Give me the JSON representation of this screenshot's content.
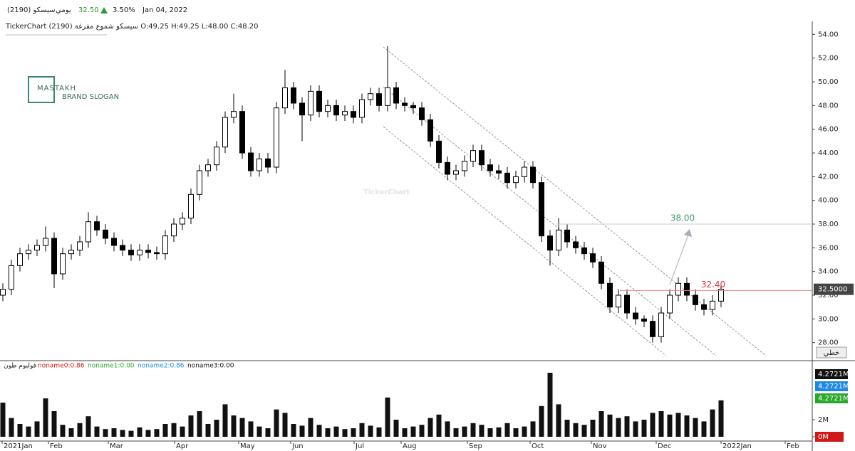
{
  "header": {
    "name": "سيسكو (2190)",
    "period": "يومي",
    "price": "32.50",
    "change": "3.50%",
    "date": "Jan 04, 2022"
  },
  "subheader": "TickerChart سيسكو شموع مفرغة (2190) O:49.25 H:49.25 L:48.00 C:48.20",
  "logo": {
    "title": "MASTAKH",
    "subtitle": "BRAND SLOGAN"
  },
  "watermark": "TickerChart",
  "style_label": "خطي",
  "chart_data": {
    "type": "candlestick",
    "candles": [
      [
        32.0,
        33.0,
        31.5,
        32.5
      ],
      [
        32.5,
        35.0,
        32.0,
        34.5
      ],
      [
        34.5,
        36.0,
        34.0,
        35.5
      ],
      [
        35.5,
        36.3,
        35.0,
        35.8
      ],
      [
        35.8,
        36.7,
        35.3,
        36.2
      ],
      [
        36.2,
        37.8,
        35.7,
        36.8
      ],
      [
        36.8,
        37.3,
        32.6,
        33.8
      ],
      [
        33.8,
        36.0,
        33.3,
        35.5
      ],
      [
        35.5,
        36.3,
        35.0,
        35.8
      ],
      [
        35.8,
        37.0,
        35.3,
        36.5
      ],
      [
        36.5,
        39.0,
        36.0,
        38.2
      ],
      [
        38.2,
        38.7,
        37.0,
        37.5
      ],
      [
        37.5,
        38.0,
        36.3,
        36.8
      ],
      [
        36.8,
        37.3,
        35.7,
        36.2
      ],
      [
        36.2,
        36.7,
        35.3,
        35.8
      ],
      [
        35.8,
        36.3,
        34.9,
        35.4
      ],
      [
        35.4,
        36.3,
        34.9,
        35.8
      ],
      [
        35.8,
        36.3,
        35.1,
        35.6
      ],
      [
        35.6,
        36.1,
        35.0,
        35.5
      ],
      [
        35.5,
        37.5,
        35.0,
        37.0
      ],
      [
        37.0,
        38.5,
        36.5,
        38.0
      ],
      [
        38.0,
        39.0,
        37.5,
        38.5
      ],
      [
        38.5,
        41.0,
        38.0,
        40.5
      ],
      [
        40.5,
        43.0,
        40.0,
        42.5
      ],
      [
        42.5,
        43.5,
        42.0,
        43.0
      ],
      [
        43.0,
        45.0,
        42.5,
        44.5
      ],
      [
        44.5,
        47.5,
        44.0,
        47.0
      ],
      [
        47.0,
        49.0,
        46.5,
        47.5
      ],
      [
        47.5,
        48.0,
        43.5,
        44.0
      ],
      [
        44.0,
        44.5,
        42.0,
        42.5
      ],
      [
        42.5,
        44.0,
        42.0,
        43.5
      ],
      [
        43.5,
        44.0,
        42.3,
        42.8
      ],
      [
        42.8,
        48.3,
        42.3,
        47.8
      ],
      [
        47.8,
        51.0,
        47.3,
        49.5
      ],
      [
        49.5,
        50.0,
        47.7,
        48.2
      ],
      [
        48.2,
        48.7,
        45.0,
        47.2
      ],
      [
        47.2,
        49.7,
        46.7,
        49.2
      ],
      [
        49.2,
        49.7,
        47.0,
        47.5
      ],
      [
        47.5,
        48.5,
        47.0,
        48.0
      ],
      [
        48.0,
        48.5,
        46.7,
        47.2
      ],
      [
        47.2,
        48.0,
        46.7,
        47.5
      ],
      [
        47.5,
        48.0,
        46.5,
        47.0
      ],
      [
        47.0,
        49.0,
        46.5,
        48.5
      ],
      [
        48.5,
        49.5,
        48.0,
        49.0
      ],
      [
        49.0,
        49.5,
        47.5,
        48.0
      ],
      [
        48.0,
        53.0,
        47.5,
        49.5
      ],
      [
        49.5,
        50.0,
        47.7,
        48.2
      ],
      [
        48.2,
        48.7,
        47.5,
        48.0
      ],
      [
        48.0,
        48.3,
        47.3,
        47.8
      ],
      [
        47.8,
        48.3,
        46.3,
        46.8
      ],
      [
        46.8,
        47.3,
        44.5,
        45.0
      ],
      [
        45.0,
        45.5,
        42.7,
        43.2
      ],
      [
        43.2,
        43.7,
        41.7,
        42.2
      ],
      [
        42.2,
        43.0,
        41.7,
        42.5
      ],
      [
        42.5,
        43.8,
        42.0,
        43.3
      ],
      [
        43.3,
        44.7,
        42.8,
        44.2
      ],
      [
        44.2,
        44.7,
        42.5,
        43.0
      ],
      [
        43.0,
        43.5,
        42.0,
        42.5
      ],
      [
        42.5,
        43.0,
        41.8,
        42.3
      ],
      [
        42.3,
        42.8,
        41.0,
        41.5
      ],
      [
        41.5,
        42.5,
        41.0,
        42.0
      ],
      [
        42.0,
        43.3,
        41.5,
        42.8
      ],
      [
        42.8,
        43.3,
        41.0,
        41.5
      ],
      [
        41.5,
        42.0,
        36.5,
        37.0
      ],
      [
        37.0,
        37.5,
        34.5,
        35.8
      ],
      [
        35.8,
        38.5,
        35.3,
        37.5
      ],
      [
        37.5,
        38.0,
        36.0,
        36.5
      ],
      [
        36.5,
        37.0,
        35.5,
        36.0
      ],
      [
        36.0,
        36.5,
        35.0,
        35.5
      ],
      [
        35.5,
        36.0,
        34.3,
        34.8
      ],
      [
        34.8,
        35.3,
        32.5,
        33.0
      ],
      [
        33.0,
        33.5,
        30.5,
        31.0
      ],
      [
        31.0,
        32.5,
        30.5,
        32.0
      ],
      [
        32.0,
        32.5,
        30.0,
        30.5
      ],
      [
        30.5,
        31.0,
        29.5,
        30.0
      ],
      [
        30.0,
        30.3,
        29.3,
        29.8
      ],
      [
        29.8,
        30.3,
        28.0,
        28.5
      ],
      [
        28.5,
        31.0,
        28.0,
        30.5
      ],
      [
        30.5,
        32.5,
        30.0,
        32.0
      ],
      [
        32.0,
        33.5,
        31.5,
        33.0
      ],
      [
        33.0,
        33.5,
        31.5,
        32.0
      ],
      [
        32.0,
        32.5,
        30.7,
        31.2
      ],
      [
        31.2,
        31.7,
        30.3,
        30.8
      ],
      [
        30.8,
        32.0,
        30.3,
        31.5
      ],
      [
        31.5,
        33.0,
        31.0,
        32.5
      ]
    ],
    "ylim": [
      26.6,
      54.8
    ],
    "yticks": [
      {
        "value": 28,
        "label": "28.00"
      },
      {
        "value": 30,
        "label": "30.00"
      },
      {
        "value": 32,
        "label": "32.00"
      },
      {
        "value": 34,
        "label": "34.00"
      },
      {
        "value": 36,
        "label": "36.00"
      },
      {
        "value": 38,
        "label": "38.00"
      },
      {
        "value": 40,
        "label": "40.00"
      },
      {
        "value": 42,
        "label": "42.00"
      },
      {
        "value": 44,
        "label": "44.00"
      },
      {
        "value": 46,
        "label": "46.00"
      },
      {
        "value": 48,
        "label": "48.00"
      },
      {
        "value": 50,
        "label": "50.00"
      },
      {
        "value": 52,
        "label": "52.00"
      },
      {
        "value": 54,
        "label": "54.00"
      }
    ],
    "x_labels": [
      "2021Jan",
      "Feb",
      "Mar",
      "Apr",
      "May",
      "Jun",
      "Jul",
      "Aug",
      "Sep",
      "Oct",
      "Nov",
      "Dec",
      "2022Jan",
      "Feb"
    ],
    "annotations": [
      {
        "value": 38,
        "label": "38.00",
        "color": "#3a9a6a"
      },
      {
        "value": 32.4,
        "label": "32.40",
        "color": "#e03030"
      }
    ],
    "last_price": {
      "value": 32.5,
      "label": "32.5000"
    },
    "up_color": "#ffffff",
    "down_color": "#000000"
  },
  "volume": {
    "legend": [
      {
        "name": "فوليوم طون",
        "color": "#222222"
      },
      {
        "name": "noname0:0.86",
        "color": "#d01818"
      },
      {
        "name": "noname1:0.00",
        "color": "#2aa82a"
      },
      {
        "name": "noname2:0.86",
        "color": "#1e88e5"
      },
      {
        "name": "noname3:0.00",
        "color": "#111111"
      }
    ],
    "values": [
      4.0,
      2.2,
      1.5,
      1.2,
      1.8,
      4.5,
      3.0,
      1.4,
      1.0,
      1.6,
      2.4,
      1.2,
      0.9,
      1.0,
      0.8,
      0.7,
      1.1,
      0.8,
      0.9,
      1.5,
      1.6,
      1.2,
      2.5,
      3.0,
      1.5,
      2.0,
      3.8,
      2.5,
      2.2,
      1.8,
      1.2,
      1.0,
      3.2,
      2.8,
      1.5,
      1.3,
      2.2,
      1.4,
      1.0,
      1.2,
      0.9,
      1.0,
      1.6,
      1.3,
      1.1,
      4.6,
      2.0,
      1.0,
      1.2,
      1.4,
      2.2,
      2.6,
      1.8,
      1.0,
      1.2,
      1.6,
      1.4,
      1.0,
      1.1,
      1.6,
      1.0,
      1.2,
      1.8,
      3.6,
      7.5,
      3.8,
      2.0,
      1.6,
      1.4,
      2.0,
      3.0,
      2.6,
      2.2,
      2.4,
      1.8,
      2.0,
      2.8,
      3.0,
      2.6,
      2.8,
      2.5,
      2.2,
      1.8,
      3.2,
      4.27
    ],
    "color": "#111111",
    "ylim": [
      0,
      8
    ],
    "yticks": [
      {
        "value": 2,
        "label": "2M"
      },
      {
        "value": 0,
        "label": "0M"
      }
    ],
    "boxes": [
      {
        "label": "4.2721M",
        "color": "#111111"
      },
      {
        "label": "4.2721M",
        "color": "#1e88e5"
      },
      {
        "label": "4.2721M",
        "color": "#2aa82a"
      }
    ]
  }
}
